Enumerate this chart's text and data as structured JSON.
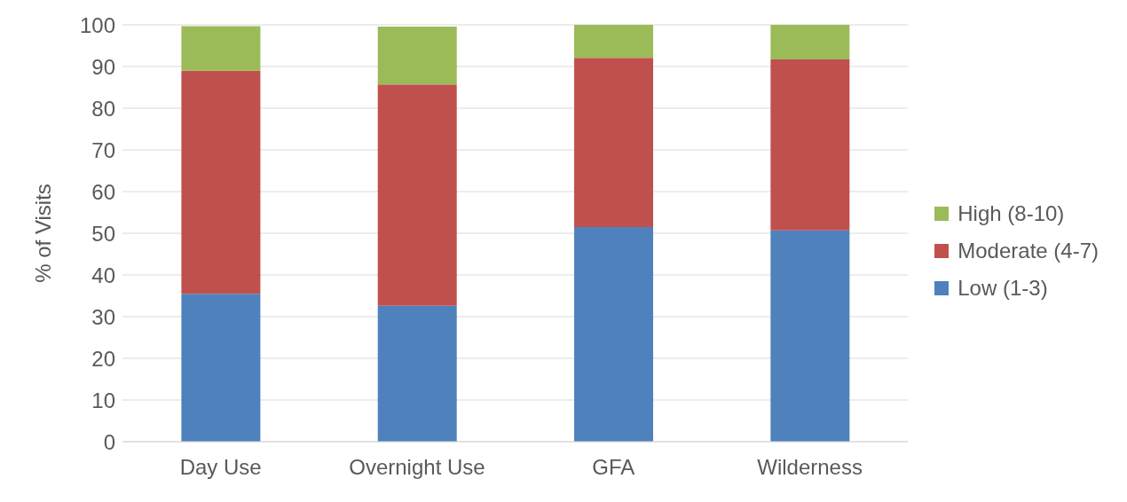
{
  "chart_data": {
    "type": "bar",
    "stacked": true,
    "ylabel": "% of Visits",
    "categories": [
      "Day Use",
      "Overnight Use",
      "GFA",
      "Wilderness"
    ],
    "series": [
      {
        "name": "Low (1-3)",
        "color": "#4f81bd",
        "values": [
          35.5,
          32.6,
          51.5,
          50.7
        ]
      },
      {
        "name": "Moderate (4-7)",
        "color": "#c0504d",
        "values": [
          53.5,
          53.1,
          40.6,
          41.0
        ]
      },
      {
        "name": "High (8-10)",
        "color": "#9bbb59",
        "values": [
          10.7,
          13.9,
          7.9,
          8.3
        ]
      }
    ],
    "ylim": [
      0,
      100
    ],
    "yticks": [
      0,
      10,
      20,
      30,
      40,
      50,
      60,
      70,
      80,
      90,
      100
    ],
    "grid": "y",
    "legend": "right"
  }
}
